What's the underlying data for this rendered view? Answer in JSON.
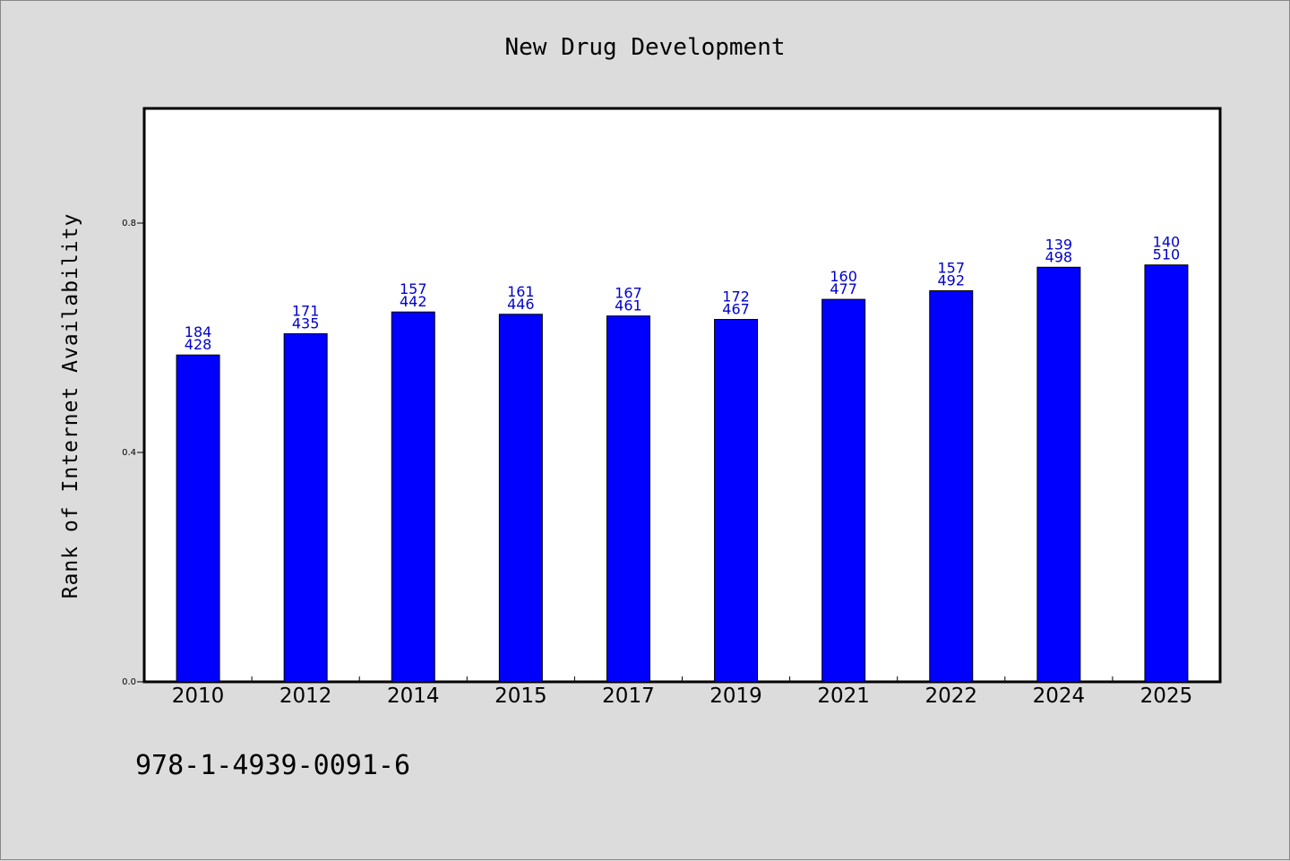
{
  "chart_data": {
    "type": "bar",
    "title": "New Drug Development",
    "xlabel": "",
    "ylabel": "Rank of Internet Availability",
    "categories": [
      "2010",
      "2012",
      "2014",
      "2015",
      "2017",
      "2019",
      "2021",
      "2022",
      "2024",
      "2025"
    ],
    "values": [
      0.57,
      0.607,
      0.645,
      0.641,
      0.638,
      0.632,
      0.667,
      0.682,
      0.723,
      0.727
    ],
    "label_top": [
      "184",
      "171",
      "157",
      "161",
      "167",
      "172",
      "160",
      "157",
      "139",
      "140"
    ],
    "label_bottom": [
      "428",
      "435",
      "442",
      "446",
      "461",
      "467",
      "477",
      "492",
      "498",
      "510"
    ],
    "ylim": [
      0.0,
      1.0
    ],
    "yticks": [
      "0.0",
      "0.4",
      "0.8"
    ],
    "ytick_values": [
      0.0,
      0.4,
      0.8
    ],
    "grid": false,
    "bar_color": "#0000ff",
    "label_color": "#0000cc"
  },
  "footer": {
    "isbn": "978-1-4939-0091-6"
  },
  "colors": {
    "background": "#dcdcdc",
    "plot_area": "#ffffff"
  }
}
